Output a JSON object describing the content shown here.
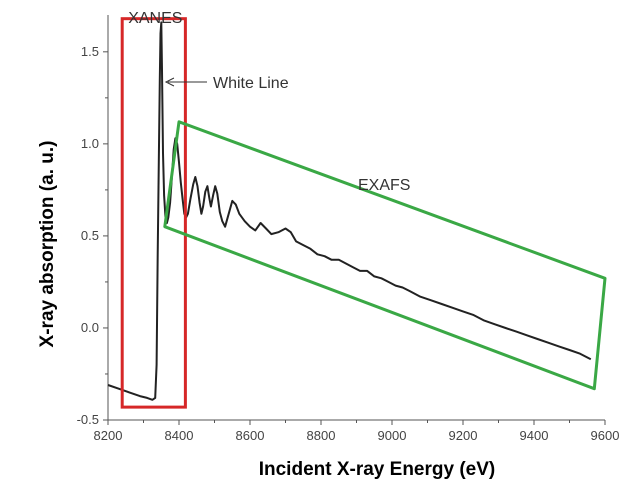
{
  "chart_data": {
    "type": "line",
    "title": "",
    "xlabel": "Incident X-ray Energy (eV)",
    "ylabel": "X-ray absorption (a. u.)",
    "xlim": [
      8200,
      9600
    ],
    "ylim": [
      -0.5,
      1.7
    ],
    "x_ticks": [
      8200,
      8400,
      8600,
      8800,
      9000,
      9200,
      9400,
      9600
    ],
    "y_ticks": [
      -0.5,
      0.0,
      0.5,
      1.0,
      1.5
    ],
    "x_tick_labels": [
      "8200",
      "8400",
      "8600",
      "8800",
      "9000",
      "9200",
      "9400",
      "9600"
    ],
    "y_tick_labels": [
      "-0.5",
      "0.0",
      "0.5",
      "1.0",
      "1.5"
    ],
    "grid": false,
    "series": [
      {
        "color": "#222222",
        "points": [
          [
            8200,
            -0.31
          ],
          [
            8230,
            -0.33
          ],
          [
            8260,
            -0.35
          ],
          [
            8290,
            -0.37
          ],
          [
            8310,
            -0.38
          ],
          [
            8325,
            -0.39
          ],
          [
            8333,
            -0.38
          ],
          [
            8337,
            -0.2
          ],
          [
            8340,
            0.4
          ],
          [
            8343,
            0.9
          ],
          [
            8346,
            1.35
          ],
          [
            8348,
            1.6
          ],
          [
            8350,
            1.66
          ],
          [
            8352,
            1.4
          ],
          [
            8355,
            0.95
          ],
          [
            8358,
            0.72
          ],
          [
            8362,
            0.6
          ],
          [
            8366,
            0.57
          ],
          [
            8370,
            0.6
          ],
          [
            8375,
            0.68
          ],
          [
            8380,
            0.82
          ],
          [
            8385,
            0.97
          ],
          [
            8390,
            1.03
          ],
          [
            8395,
            1.0
          ],
          [
            8400,
            0.9
          ],
          [
            8405,
            0.79
          ],
          [
            8410,
            0.7
          ],
          [
            8415,
            0.62
          ],
          [
            8420,
            0.6
          ],
          [
            8425,
            0.62
          ],
          [
            8432,
            0.7
          ],
          [
            8440,
            0.78
          ],
          [
            8446,
            0.82
          ],
          [
            8452,
            0.77
          ],
          [
            8458,
            0.68
          ],
          [
            8463,
            0.62
          ],
          [
            8468,
            0.66
          ],
          [
            8474,
            0.74
          ],
          [
            8480,
            0.77
          ],
          [
            8486,
            0.7
          ],
          [
            8490,
            0.66
          ],
          [
            8496,
            0.72
          ],
          [
            8502,
            0.77
          ],
          [
            8508,
            0.73
          ],
          [
            8515,
            0.63
          ],
          [
            8522,
            0.58
          ],
          [
            8530,
            0.55
          ],
          [
            8540,
            0.62
          ],
          [
            8550,
            0.69
          ],
          [
            8560,
            0.67
          ],
          [
            8570,
            0.62
          ],
          [
            8585,
            0.58
          ],
          [
            8600,
            0.55
          ],
          [
            8615,
            0.53
          ],
          [
            8630,
            0.57
          ],
          [
            8645,
            0.54
          ],
          [
            8660,
            0.51
          ],
          [
            8680,
            0.52
          ],
          [
            8700,
            0.54
          ],
          [
            8715,
            0.52
          ],
          [
            8730,
            0.47
          ],
          [
            8750,
            0.45
          ],
          [
            8770,
            0.43
          ],
          [
            8790,
            0.4
          ],
          [
            8810,
            0.39
          ],
          [
            8830,
            0.37
          ],
          [
            8850,
            0.37
          ],
          [
            8870,
            0.35
          ],
          [
            8890,
            0.33
          ],
          [
            8910,
            0.31
          ],
          [
            8930,
            0.31
          ],
          [
            8950,
            0.28
          ],
          [
            8970,
            0.27
          ],
          [
            8990,
            0.25
          ],
          [
            9010,
            0.23
          ],
          [
            9030,
            0.22
          ],
          [
            9050,
            0.2
          ],
          [
            9080,
            0.17
          ],
          [
            9110,
            0.15
          ],
          [
            9140,
            0.13
          ],
          [
            9170,
            0.11
          ],
          [
            9200,
            0.09
          ],
          [
            9230,
            0.07
          ],
          [
            9260,
            0.04
          ],
          [
            9290,
            0.02
          ],
          [
            9320,
            0.0
          ],
          [
            9350,
            -0.02
          ],
          [
            9380,
            -0.04
          ],
          [
            9410,
            -0.06
          ],
          [
            9440,
            -0.08
          ],
          [
            9470,
            -0.1
          ],
          [
            9500,
            -0.12
          ],
          [
            9530,
            -0.14
          ],
          [
            9560,
            -0.17
          ]
        ]
      }
    ],
    "annotations": [
      {
        "text": "XANES",
        "box_color": "#d62728",
        "region": {
          "x0": 8240,
          "x1": 8418,
          "y0": -0.43,
          "y1": 1.68
        }
      },
      {
        "text": "EXAFS",
        "box_color": "#3aa845",
        "corners": [
          [
            8360,
            0.55
          ],
          [
            8400,
            1.12
          ],
          [
            9600,
            0.27
          ],
          [
            9570,
            -0.33
          ]
        ]
      },
      {
        "text": "White Line",
        "points_to": [
          8352,
          1.4
        ]
      }
    ]
  }
}
